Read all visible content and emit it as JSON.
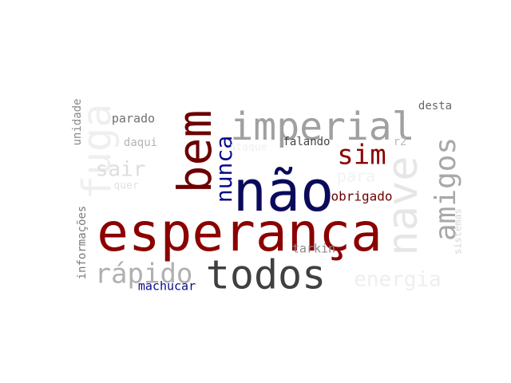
{
  "words": [
    {
      "text": "esperança",
      "color": "#8b0000"
    },
    {
      "text": "não",
      "color": "#0a0a5c"
    },
    {
      "text": "todos",
      "color": "#404040"
    },
    {
      "text": "imperial",
      "color": "#a0a0a0"
    },
    {
      "text": "bem",
      "color": "#6b0000"
    },
    {
      "text": "nave",
      "color": "#e6e6e6"
    },
    {
      "text": "fuga",
      "color": "#efefef"
    },
    {
      "text": "amigos",
      "color": "#a8a8a8"
    },
    {
      "text": "rápido",
      "color": "#b0b0b0"
    },
    {
      "text": "energia",
      "color": "#eeeeee"
    },
    {
      "text": "sim",
      "color": "#8b0000"
    },
    {
      "text": "nunca",
      "color": "#0a0a8a"
    },
    {
      "text": "sair",
      "color": "#dddddd"
    },
    {
      "text": "obrigado",
      "color": "#6b0000"
    },
    {
      "text": "desta",
      "color": "#666666"
    },
    {
      "text": "parado",
      "color": "#707070"
    },
    {
      "text": "daqui",
      "color": "#b4b4b4"
    },
    {
      "text": "falando",
      "color": "#444444"
    },
    {
      "text": "tarkin",
      "color": "#888888"
    },
    {
      "text": "machucar",
      "color": "#0a0a8a"
    },
    {
      "text": "unidade",
      "color": "#8a8a8a"
    },
    {
      "text": "informações",
      "color": "#7a7a7a"
    },
    {
      "text": "sistemas",
      "color": "#d6d6d6"
    },
    {
      "text": "ataque",
      "color": "#f0f0f0"
    },
    {
      "text": "quer",
      "color": "#e2e2e2"
    },
    {
      "text": "r2",
      "color": "#bbbbbb"
    },
    {
      "text": "para",
      "color": "#f2f2f2"
    }
  ]
}
